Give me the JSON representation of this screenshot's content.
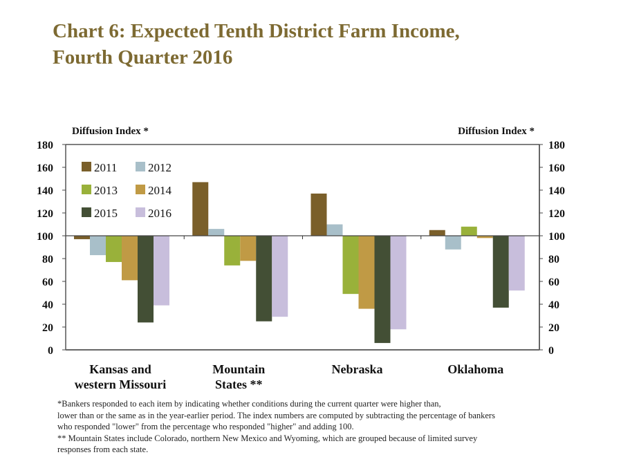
{
  "title_line1": "Chart 6: Expected Tenth District Farm Income,",
  "title_line2": "Fourth Quarter 2016",
  "chart_data": {
    "type": "bar",
    "title": "Chart 6: Expected Tenth District Farm Income, Fourth Quarter 2016",
    "ylabel_left": "Diffusion Index *",
    "ylabel_right": "Diffusion Index *",
    "xlabel": "",
    "ylim": [
      0,
      180
    ],
    "baseline": 100,
    "yticks": [
      0,
      20,
      40,
      60,
      80,
      100,
      120,
      140,
      160,
      180
    ],
    "categories": [
      [
        "Kansas and",
        "western Missouri"
      ],
      [
        "Mountain",
        "States **"
      ],
      [
        "Nebraska"
      ],
      [
        "Oklahoma"
      ]
    ],
    "legend_position": "top-left",
    "grid": false,
    "series": [
      {
        "name": "2011",
        "color": "#7a5f2a",
        "values": [
          97,
          147,
          137,
          105
        ]
      },
      {
        "name": "2012",
        "color": "#a8bfc9",
        "values": [
          83,
          106,
          110,
          88
        ]
      },
      {
        "name": "2013",
        "color": "#99b13a",
        "values": [
          77,
          74,
          49,
          108
        ]
      },
      {
        "name": "2014",
        "color": "#c09a45",
        "values": [
          61,
          78,
          36,
          98
        ]
      },
      {
        "name": "2015",
        "color": "#434f35",
        "values": [
          24,
          25,
          6,
          37
        ]
      },
      {
        "name": "2016",
        "color": "#c8bedc",
        "values": [
          39,
          29,
          18,
          52
        ]
      }
    ]
  },
  "notes": [
    "*Bankers responded to each item by indicating whether conditions during the current quarter were higher than,",
    "lower than or the same as in the year-earlier period.  The index numbers are computed by subtracting the percentage of  bankers",
    "who responded \"lower\" from the percentage who responded \"higher\" and adding 100.",
    "** Mountain States include Colorado, northern New Mexico and Wyoming, which are grouped because of limited survey",
    "responses from each state."
  ]
}
